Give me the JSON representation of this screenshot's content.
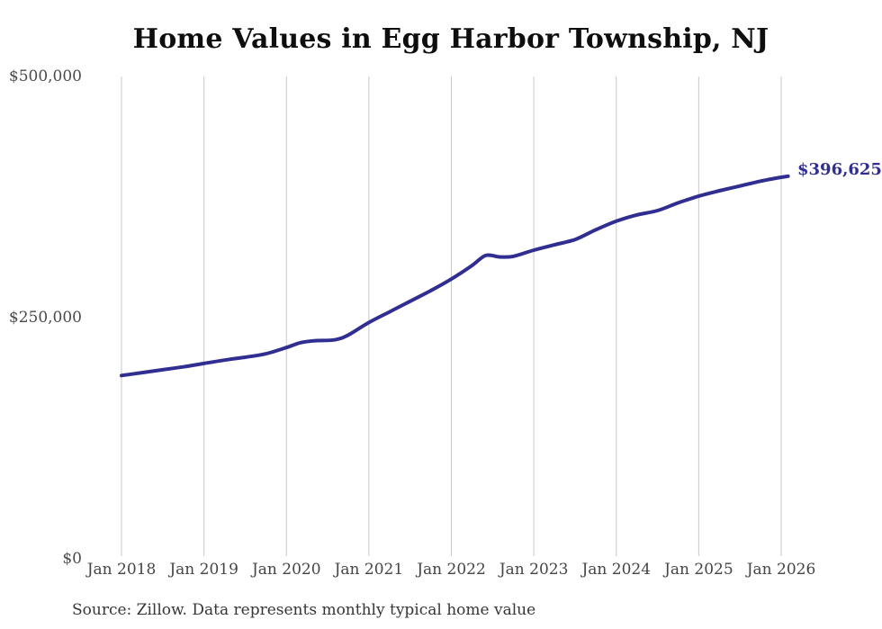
{
  "chart": {
    "title": "Home Values in Egg Harbor Township, NJ",
    "end_label": "$396,625",
    "source_note": "Source: Zillow. Data represents monthly typical home value"
  },
  "chart_data": {
    "type": "line",
    "title": "Home Values in Egg Harbor Township, NJ",
    "series_name": "Monthly typical home value (USD)",
    "line_color": "#312e91",
    "end_label_color": "#312e91",
    "grid": "vertical-only",
    "legend": "none",
    "ylim": [
      0,
      500000
    ],
    "y_ticks": [
      {
        "value": 0,
        "label": "$0"
      },
      {
        "value": 250000,
        "label": "$250,000"
      },
      {
        "value": 500000,
        "label": "$500,000"
      }
    ],
    "x_ticks": [
      {
        "year": 2018,
        "label": "Jan 2018"
      },
      {
        "year": 2019,
        "label": "Jan 2019"
      },
      {
        "year": 2020,
        "label": "Jan 2020"
      },
      {
        "year": 2021,
        "label": "Jan 2021"
      },
      {
        "year": 2022,
        "label": "Jan 2022"
      },
      {
        "year": 2023,
        "label": "Jan 2023"
      },
      {
        "year": 2024,
        "label": "Jan 2024"
      },
      {
        "year": 2025,
        "label": "Jan 2025"
      },
      {
        "year": 2026,
        "label": "Jan 2026"
      }
    ],
    "points": [
      {
        "date": "2018-01",
        "value": 190000
      },
      {
        "date": "2018-04",
        "value": 193000
      },
      {
        "date": "2018-07",
        "value": 196000
      },
      {
        "date": "2018-10",
        "value": 199000
      },
      {
        "date": "2019-01",
        "value": 202500
      },
      {
        "date": "2019-04",
        "value": 206000
      },
      {
        "date": "2019-07",
        "value": 209000
      },
      {
        "date": "2019-10",
        "value": 212500
      },
      {
        "date": "2020-01",
        "value": 219000
      },
      {
        "date": "2020-03",
        "value": 224000
      },
      {
        "date": "2020-05",
        "value": 226000
      },
      {
        "date": "2020-08",
        "value": 227000
      },
      {
        "date": "2020-10",
        "value": 232000
      },
      {
        "date": "2021-01",
        "value": 245000
      },
      {
        "date": "2021-04",
        "value": 256000
      },
      {
        "date": "2021-07",
        "value": 267000
      },
      {
        "date": "2021-10",
        "value": 278000
      },
      {
        "date": "2022-01",
        "value": 290000
      },
      {
        "date": "2022-04",
        "value": 304000
      },
      {
        "date": "2022-06",
        "value": 314500
      },
      {
        "date": "2022-08",
        "value": 313000
      },
      {
        "date": "2022-10",
        "value": 313500
      },
      {
        "date": "2023-01",
        "value": 320000
      },
      {
        "date": "2023-04",
        "value": 325500
      },
      {
        "date": "2023-07",
        "value": 331000
      },
      {
        "date": "2023-10",
        "value": 341000
      },
      {
        "date": "2024-01",
        "value": 350000
      },
      {
        "date": "2024-04",
        "value": 356500
      },
      {
        "date": "2024-07",
        "value": 361000
      },
      {
        "date": "2024-10",
        "value": 369000
      },
      {
        "date": "2025-01",
        "value": 376000
      },
      {
        "date": "2025-04",
        "value": 381500
      },
      {
        "date": "2025-07",
        "value": 386500
      },
      {
        "date": "2025-10",
        "value": 391500
      },
      {
        "date": "2026-01",
        "value": 395500
      },
      {
        "date": "2026-02",
        "value": 396625
      }
    ],
    "latest_point": {
      "date": "2026-02",
      "value": 396625,
      "label": "$396,625"
    },
    "source": "Source: Zillow. Data represents monthly typical home value"
  }
}
